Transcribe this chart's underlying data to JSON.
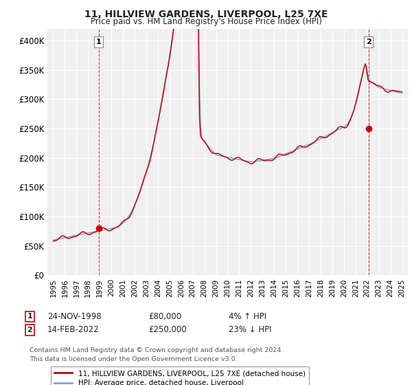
{
  "title": "11, HILLVIEW GARDENS, LIVERPOOL, L25 7XE",
  "subtitle": "Price paid vs. HM Land Registry's House Price Index (HPI)",
  "legend_label_red": "11, HILLVIEW GARDENS, LIVERPOOL, L25 7XE (detached house)",
  "legend_label_blue": "HPI: Average price, detached house, Liverpool",
  "footnote": "Contains HM Land Registry data © Crown copyright and database right 2024.\nThis data is licensed under the Open Government Licence v3.0.",
  "sale1_date": "24-NOV-1998",
  "sale1_price": "£80,000",
  "sale1_hpi": "4% ↑ HPI",
  "sale2_date": "14-FEB-2022",
  "sale2_price": "£250,000",
  "sale2_hpi": "23% ↓ HPI",
  "yticks": [
    0,
    50000,
    100000,
    150000,
    200000,
    250000,
    300000,
    350000,
    400000
  ],
  "ytick_labels": [
    "£0",
    "£50K",
    "£100K",
    "£150K",
    "£200K",
    "£250K",
    "£300K",
    "£350K",
    "£400K"
  ],
  "ylim": [
    0,
    420000
  ],
  "xlim": [
    1994.5,
    2025.5
  ],
  "xticks": [
    1995,
    1996,
    1997,
    1998,
    1999,
    2000,
    2001,
    2002,
    2003,
    2004,
    2005,
    2006,
    2007,
    2008,
    2009,
    2010,
    2011,
    2012,
    2013,
    2014,
    2015,
    2016,
    2017,
    2018,
    2019,
    2020,
    2021,
    2022,
    2023,
    2024,
    2025
  ],
  "background_color": "#ffffff",
  "plot_bg_color": "#f0f0f0",
  "grid_color": "#ffffff",
  "red_color": "#cc0000",
  "blue_color": "#77aacc",
  "marker1_x": 1998.9,
  "marker1_y": 80000,
  "marker2_x": 2022.12,
  "marker2_y": 250000
}
